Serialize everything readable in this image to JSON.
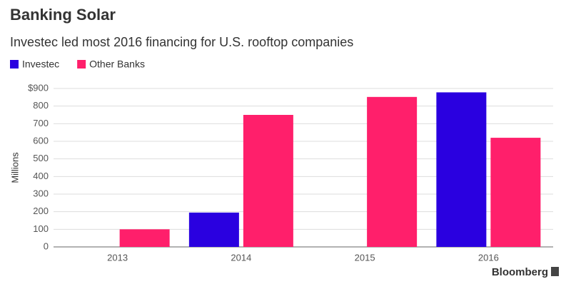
{
  "chart_data": {
    "type": "bar",
    "title": "Banking Solar",
    "subtitle": "Investec led most 2016 financing for U.S. rooftop companies",
    "y_label": "Millions",
    "source": "Bloomberg",
    "categories": [
      "2013",
      "2014",
      "2015",
      "2016"
    ],
    "series": [
      {
        "name": "Investec",
        "color": "#2a00e0",
        "values": [
          null,
          195,
          null,
          878
        ]
      },
      {
        "name": "Other Banks",
        "color": "#ff1f6b",
        "values": [
          100,
          750,
          852,
          620
        ]
      }
    ],
    "ylim": [
      0,
      900
    ],
    "yticks": [
      0,
      100,
      200,
      300,
      400,
      500,
      600,
      700,
      800,
      {
        "value": 900,
        "label": "$900"
      }
    ],
    "grid": true
  }
}
